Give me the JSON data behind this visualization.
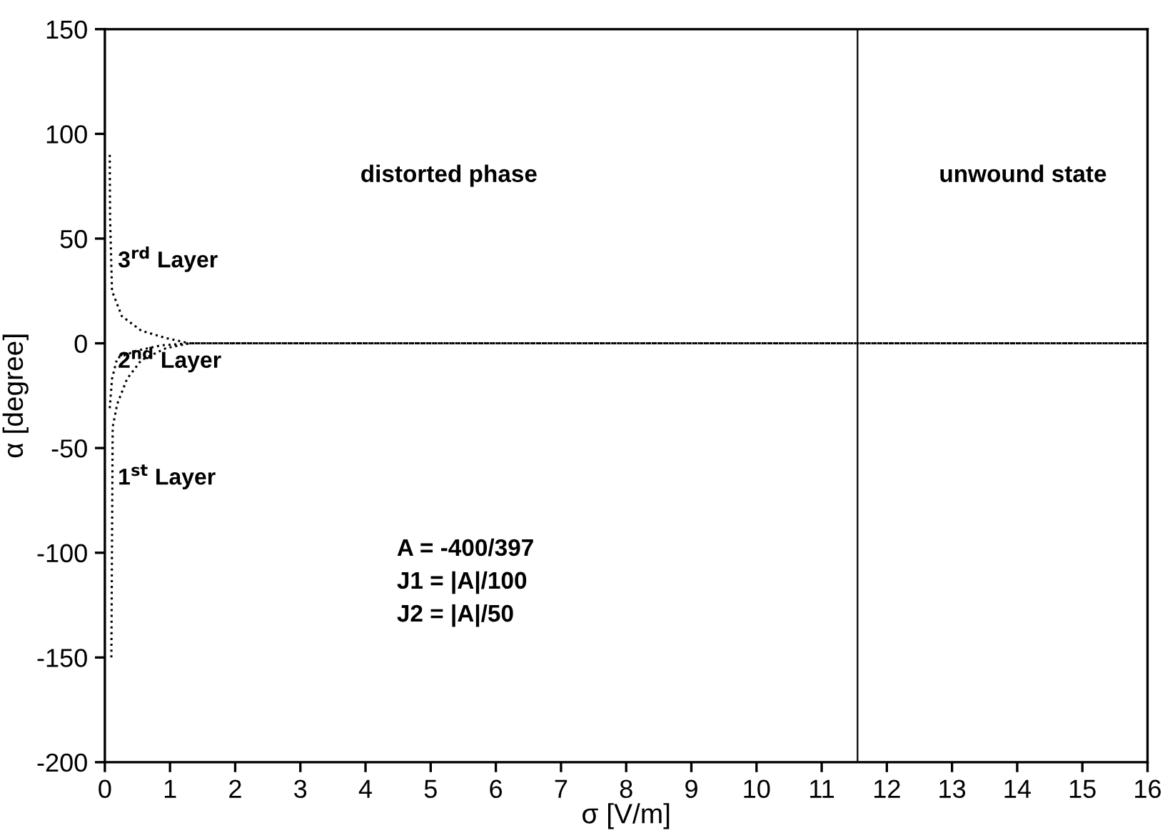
{
  "chart_data": {
    "type": "line",
    "xlabel": "σ [V/m]",
    "ylabel": "α [degree]",
    "xlim": [
      0,
      16
    ],
    "ylim": [
      -200,
      150
    ],
    "xticks": [
      0,
      1,
      2,
      3,
      4,
      5,
      6,
      7,
      8,
      9,
      10,
      11,
      12,
      13,
      14,
      15,
      16
    ],
    "yticks": [
      -200,
      -150,
      -100,
      -50,
      0,
      50,
      100,
      150
    ],
    "grid": false,
    "legend": false,
    "line_style": "dotted",
    "marker": "none",
    "series": [
      {
        "color": "#000000",
        "x": [
          0.075,
          0.08,
          0.11,
          0.26,
          0.56,
          0.94,
          1.3,
          16
        ],
        "values": [
          90,
          60,
          25,
          13,
          6,
          2.5,
          0,
          0
        ]
      },
      {
        "color": "#000000",
        "x": [
          0.075,
          0.11,
          0.19,
          0.49,
          0.86,
          1.3,
          16
        ],
        "values": [
          -31,
          -17,
          -7,
          -3.5,
          -1,
          0,
          0
        ]
      },
      {
        "color": "#000000",
        "x": [
          0.1,
          0.12,
          0.19,
          0.34,
          0.56,
          0.94,
          1.3,
          16
        ],
        "values": [
          -150,
          -40,
          -29,
          -17,
          -8,
          -2.3,
          0,
          0
        ]
      }
    ],
    "ref_lines": [
      {
        "axis": "x",
        "value": 11.55,
        "color": "#000000",
        "line_style": "solid"
      }
    ],
    "annotations": [
      "3$^{rd}$ Layer",
      "2$^{nd}$ Layer",
      "1$^{st}$ Layer",
      "distorted phase",
      "unwound state",
      "A = -400/397",
      "J1 = |A|/100",
      "J2 = |A|/50"
    ]
  }
}
